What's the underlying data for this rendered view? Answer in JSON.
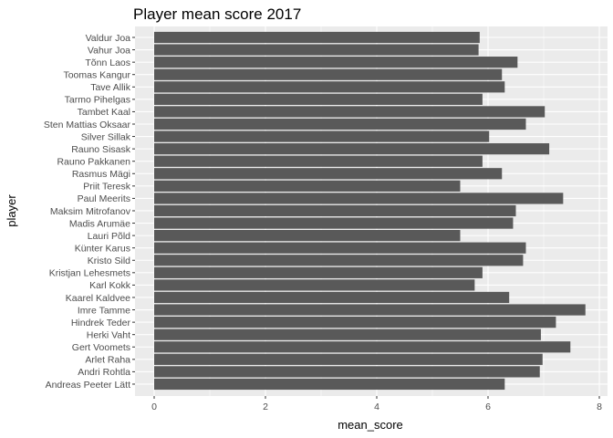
{
  "chart_data": {
    "type": "bar",
    "orientation": "horizontal",
    "title": "Player mean score 2017",
    "xlabel": "mean_score",
    "ylabel": "player",
    "xlim": [
      0,
      8
    ],
    "xticks": [
      0,
      2,
      4,
      6,
      8
    ],
    "grid": true,
    "colors": {
      "panel": "#ebebeb",
      "grid": "#ffffff",
      "bar": "#595959",
      "text": "#4d4d4d"
    },
    "categories": [
      "Valdur Joa",
      "Vahur Joa",
      "Tõnn Laos",
      "Toomas Kangur",
      "Tave Allik",
      "Tarmo Pihelgas",
      "Tambet Kaal",
      "Sten Mattias Oksaar",
      "Silver Sillak",
      "Rauno Sisask",
      "Rauno Pakkanen",
      "Rasmus Mägi",
      "Priit Teresk",
      "Paul Meerits",
      "Maksim Mitrofanov",
      "Madis Arumäe",
      "Lauri Põld",
      "Künter Karus",
      "Kristo Sild",
      "Kristjan Lehesmets",
      "Karl Kokk",
      "Kaarel Kaldvee",
      "Imre Tamme",
      "Hindrek Teder",
      "Herki Vaht",
      "Gert Voomets",
      "Arlet Raha",
      "Andri Rohtla",
      "Andreas Peeter Lätt"
    ],
    "values": [
      5.85,
      5.83,
      6.53,
      6.25,
      6.3,
      5.9,
      7.02,
      6.68,
      6.02,
      7.1,
      5.9,
      6.25,
      5.5,
      7.35,
      6.5,
      6.45,
      5.5,
      6.68,
      6.63,
      5.9,
      5.76,
      6.38,
      7.75,
      7.22,
      6.95,
      7.48,
      6.98,
      6.93,
      6.3
    ]
  }
}
